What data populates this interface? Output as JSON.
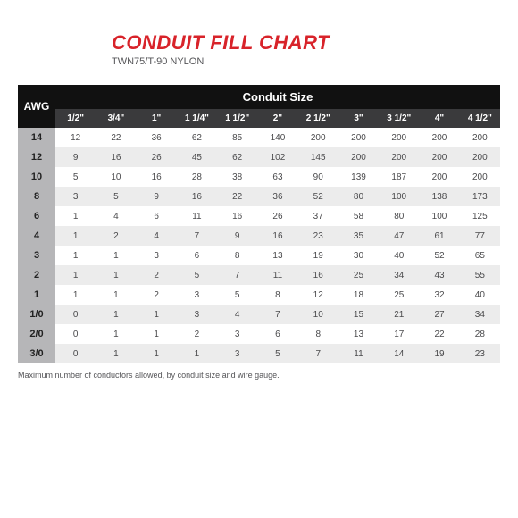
{
  "header": {
    "title": "CONDUIT FILL CHART",
    "title_color": "#d8232a",
    "title_fontsize": 22,
    "subtitle": "TWN75/T-90 NYLON",
    "subtitle_color": "#555558",
    "subtitle_fontsize": 11
  },
  "table": {
    "header_bg_dark": "#111111",
    "header_bg_mid": "#3a3a3c",
    "header_text_color": "#ffffff",
    "awg_col_bg": "#b6b6b8",
    "row_bg_even": "#ffffff",
    "row_bg_odd": "#ececec",
    "cell_text_color": "#4a4a4c",
    "awg_text_color": "#222222",
    "group_label": "Conduit Size",
    "awg_label": "AWG",
    "columns": [
      "1/2\"",
      "3/4\"",
      "1\"",
      "1 1/4\"",
      "1 1/2\"",
      "2\"",
      "2 1/2\"",
      "3\"",
      "3 1/2\"",
      "4\"",
      "4 1/2\""
    ],
    "rows": [
      {
        "awg": "14",
        "vals": [
          12,
          22,
          36,
          62,
          85,
          140,
          200,
          200,
          200,
          200,
          200
        ]
      },
      {
        "awg": "12",
        "vals": [
          9,
          16,
          26,
          45,
          62,
          102,
          145,
          200,
          200,
          200,
          200
        ]
      },
      {
        "awg": "10",
        "vals": [
          5,
          10,
          16,
          28,
          38,
          63,
          90,
          139,
          187,
          200,
          200
        ]
      },
      {
        "awg": "8",
        "vals": [
          3,
          5,
          9,
          16,
          22,
          36,
          52,
          80,
          100,
          138,
          173
        ]
      },
      {
        "awg": "6",
        "vals": [
          1,
          4,
          6,
          11,
          16,
          26,
          37,
          58,
          80,
          100,
          125
        ]
      },
      {
        "awg": "4",
        "vals": [
          1,
          2,
          4,
          7,
          9,
          16,
          23,
          35,
          47,
          61,
          77
        ]
      },
      {
        "awg": "3",
        "vals": [
          1,
          1,
          3,
          6,
          8,
          13,
          19,
          30,
          40,
          52,
          65
        ]
      },
      {
        "awg": "2",
        "vals": [
          1,
          1,
          2,
          5,
          7,
          11,
          16,
          25,
          34,
          43,
          55
        ]
      },
      {
        "awg": "1",
        "vals": [
          1,
          1,
          2,
          3,
          5,
          8,
          12,
          18,
          25,
          32,
          40
        ]
      },
      {
        "awg": "1/0",
        "vals": [
          0,
          1,
          1,
          3,
          4,
          7,
          10,
          15,
          21,
          27,
          34
        ]
      },
      {
        "awg": "2/0",
        "vals": [
          0,
          1,
          1,
          2,
          3,
          6,
          8,
          13,
          17,
          22,
          28
        ]
      },
      {
        "awg": "3/0",
        "vals": [
          0,
          1,
          1,
          1,
          3,
          5,
          7,
          11,
          14,
          19,
          23
        ]
      }
    ]
  },
  "footnote": {
    "text": "Maximum number of conductors allowed, by conduit size and wire gauge.",
    "color": "#555558",
    "fontsize": 9
  }
}
